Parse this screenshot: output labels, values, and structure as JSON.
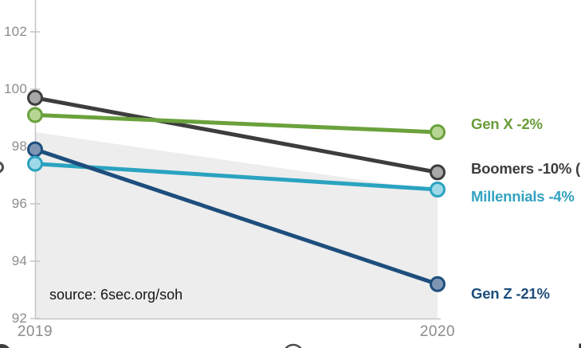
{
  "chart_data": {
    "type": "line",
    "subtype": "slope-chart",
    "title": "",
    "x_categories": [
      "2019",
      "2020"
    ],
    "series": [
      {
        "name": "Boomers",
        "label": "Boomers -10% (",
        "values": [
          99.7,
          97.1
        ],
        "color": "#3d3d3d",
        "marker_fill": "#a8a8a8",
        "label_color": "#3d3d3d",
        "label_dy": -4
      },
      {
        "name": "Gen X",
        "label": "Gen X -2%",
        "values": [
          99.1,
          98.5
        ],
        "color": "#6aa13c",
        "marker_fill": "#b7d694",
        "label_color": "#6a9c3a",
        "label_dy": -10
      },
      {
        "name": "Millennials",
        "label": "Millennials -4%",
        "values": [
          97.4,
          96.5
        ],
        "color": "#2aa3c0",
        "marker_fill": "#9fd9e8",
        "label_color": "#32a2c0",
        "label_dy": 9
      },
      {
        "name": "Gen Z",
        "label": "Gen Z -21%",
        "values": [
          97.9,
          93.2
        ],
        "color": "#1d4e7d",
        "marker_fill": "#7e95b4",
        "label_color": "#1e4e7c",
        "label_dy": 12
      }
    ],
    "band": {
      "top_values": [
        98.5,
        96.45
      ],
      "fill": "#ededed"
    },
    "yticks": [
      92,
      94,
      96,
      98,
      100,
      102
    ],
    "ylim": [
      92,
      103.1
    ],
    "grid": false,
    "legend_position": "right",
    "axis_color": "#c6c6c6",
    "tick_label_color": "#8c8c8c",
    "source": "source: 6sec.org/soh"
  }
}
